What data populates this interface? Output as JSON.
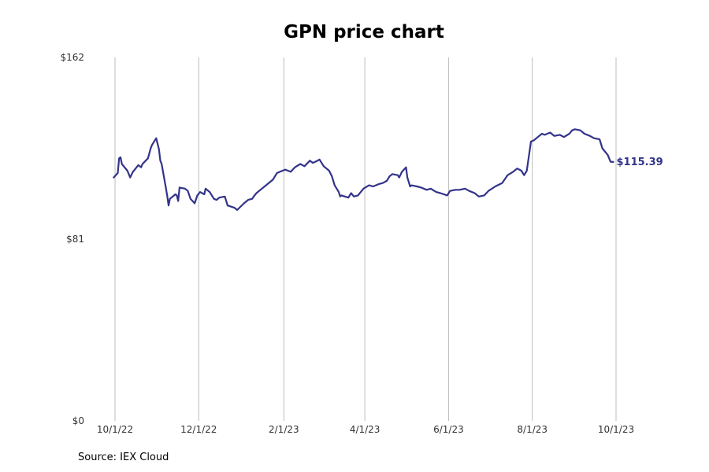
{
  "chart_data": {
    "type": "line",
    "title": "GPN price chart",
    "xlabel": "",
    "ylabel": "",
    "x_ticks": [
      "10/1/22",
      "12/1/22",
      "2/1/23",
      "4/1/23",
      "6/1/23",
      "8/1/23",
      "10/1/23"
    ],
    "y_ticks": [
      "$162",
      "$81",
      "$0"
    ],
    "ylim": [
      0,
      162
    ],
    "xlim": [
      "2022-10-01",
      "2023-10-01"
    ],
    "grid": "vertical",
    "legend": "none",
    "line_color": "#33338a",
    "last_value_label": "$115.39",
    "series": [
      {
        "points": [
          [
            "2022-09-30",
            108.5
          ],
          [
            "2022-10-03",
            110.5
          ],
          [
            "2022-10-04",
            117
          ],
          [
            "2022-10-05",
            117.5
          ],
          [
            "2022-10-06",
            114.5
          ],
          [
            "2022-10-10",
            111.5
          ],
          [
            "2022-10-12",
            108.5
          ],
          [
            "2022-10-14",
            111
          ],
          [
            "2022-10-18",
            114
          ],
          [
            "2022-10-20",
            113
          ],
          [
            "2022-10-21",
            114.5
          ],
          [
            "2022-10-25",
            117
          ],
          [
            "2022-10-27",
            121.5
          ],
          [
            "2022-10-28",
            123
          ],
          [
            "2022-10-31",
            126
          ],
          [
            "2022-11-02",
            121
          ],
          [
            "2022-11-03",
            116
          ],
          [
            "2022-11-04",
            114.5
          ],
          [
            "2022-11-07",
            104
          ],
          [
            "2022-11-08",
            100.5
          ],
          [
            "2022-11-09",
            96
          ],
          [
            "2022-11-10",
            99
          ],
          [
            "2022-11-14",
            101
          ],
          [
            "2022-11-15",
            100.5
          ],
          [
            "2022-11-16",
            98
          ],
          [
            "2022-11-17",
            104
          ],
          [
            "2022-11-21",
            103.5
          ],
          [
            "2022-11-23",
            102.5
          ],
          [
            "2022-11-25",
            99
          ],
          [
            "2022-11-28",
            97
          ],
          [
            "2022-11-30",
            100.5
          ],
          [
            "2022-12-02",
            102
          ],
          [
            "2022-12-05",
            101
          ],
          [
            "2022-12-06",
            103.5
          ],
          [
            "2022-12-09",
            102
          ],
          [
            "2022-12-12",
            99
          ],
          [
            "2022-12-14",
            98.5
          ],
          [
            "2022-12-16",
            99.5
          ],
          [
            "2022-12-20",
            100
          ],
          [
            "2022-12-22",
            96
          ],
          [
            "2022-12-27",
            95
          ],
          [
            "2022-12-29",
            94
          ],
          [
            "2023-01-03",
            97
          ],
          [
            "2023-01-06",
            98.5
          ],
          [
            "2023-01-09",
            99
          ],
          [
            "2023-01-10",
            100
          ],
          [
            "2023-01-12",
            101.5
          ],
          [
            "2023-01-16",
            103.5
          ],
          [
            "2023-01-18",
            104.5
          ],
          [
            "2023-01-20",
            105.5
          ],
          [
            "2023-01-24",
            107.5
          ],
          [
            "2023-01-27",
            110.5
          ],
          [
            "2023-01-31",
            111.5
          ],
          [
            "2023-02-02",
            112
          ],
          [
            "2023-02-06",
            111
          ],
          [
            "2023-02-09",
            113
          ],
          [
            "2023-02-13",
            114.5
          ],
          [
            "2023-02-16",
            113.5
          ],
          [
            "2023-02-20",
            116
          ],
          [
            "2023-02-22",
            115
          ],
          [
            "2023-02-24",
            115.5
          ],
          [
            "2023-02-27",
            116.5
          ],
          [
            "2023-03-02",
            113.5
          ],
          [
            "2023-03-06",
            111.5
          ],
          [
            "2023-03-08",
            109
          ],
          [
            "2023-03-10",
            105
          ],
          [
            "2023-03-13",
            102
          ],
          [
            "2023-03-14",
            100
          ],
          [
            "2023-03-15",
            100.5
          ],
          [
            "2023-03-20",
            99.5
          ],
          [
            "2023-03-22",
            101.5
          ],
          [
            "2023-03-24",
            100
          ],
          [
            "2023-03-27",
            100.5
          ],
          [
            "2023-03-31",
            103.5
          ],
          [
            "2023-04-04",
            105
          ],
          [
            "2023-04-07",
            104.5
          ],
          [
            "2023-04-11",
            105.5
          ],
          [
            "2023-04-14",
            106
          ],
          [
            "2023-04-17",
            107
          ],
          [
            "2023-04-19",
            109
          ],
          [
            "2023-04-21",
            110
          ],
          [
            "2023-04-25",
            109.5
          ],
          [
            "2023-04-26",
            108.5
          ],
          [
            "2023-04-28",
            111
          ],
          [
            "2023-05-01",
            113
          ],
          [
            "2023-05-02",
            108.5
          ],
          [
            "2023-05-04",
            104.5
          ],
          [
            "2023-05-05",
            105
          ],
          [
            "2023-05-09",
            104.5
          ],
          [
            "2023-05-12",
            104
          ],
          [
            "2023-05-16",
            103
          ],
          [
            "2023-05-19",
            103.5
          ],
          [
            "2023-05-23",
            102
          ],
          [
            "2023-05-26",
            101.5
          ],
          [
            "2023-05-31",
            100.5
          ],
          [
            "2023-06-02",
            102.5
          ],
          [
            "2023-06-06",
            103
          ],
          [
            "2023-06-09",
            103
          ],
          [
            "2023-06-13",
            103.5
          ],
          [
            "2023-06-16",
            102.5
          ],
          [
            "2023-06-20",
            101.5
          ],
          [
            "2023-06-23",
            100
          ],
          [
            "2023-06-27",
            100.5
          ],
          [
            "2023-06-30",
            102.5
          ],
          [
            "2023-07-05",
            104.5
          ],
          [
            "2023-07-10",
            106
          ],
          [
            "2023-07-14",
            109.5
          ],
          [
            "2023-07-18",
            111
          ],
          [
            "2023-07-21",
            112.5
          ],
          [
            "2023-07-24",
            111.5
          ],
          [
            "2023-07-26",
            109.5
          ],
          [
            "2023-07-28",
            111.5
          ],
          [
            "2023-07-31",
            124.5
          ],
          [
            "2023-08-02",
            125
          ],
          [
            "2023-08-04",
            126
          ],
          [
            "2023-08-08",
            128
          ],
          [
            "2023-08-10",
            127.5
          ],
          [
            "2023-08-14",
            128.5
          ],
          [
            "2023-08-17",
            127
          ],
          [
            "2023-08-21",
            127.5
          ],
          [
            "2023-08-24",
            126.5
          ],
          [
            "2023-08-28",
            128
          ],
          [
            "2023-08-30",
            129.5
          ],
          [
            "2023-09-01",
            130
          ],
          [
            "2023-09-05",
            129.5
          ],
          [
            "2023-09-08",
            128
          ],
          [
            "2023-09-12",
            127
          ],
          [
            "2023-09-15",
            126
          ],
          [
            "2023-09-19",
            125.5
          ],
          [
            "2023-09-21",
            121.5
          ],
          [
            "2023-09-25",
            118.5
          ],
          [
            "2023-09-27",
            115.5
          ],
          [
            "2023-09-29",
            115.39
          ]
        ]
      }
    ]
  },
  "footer": {
    "source": "Source: IEX Cloud"
  }
}
